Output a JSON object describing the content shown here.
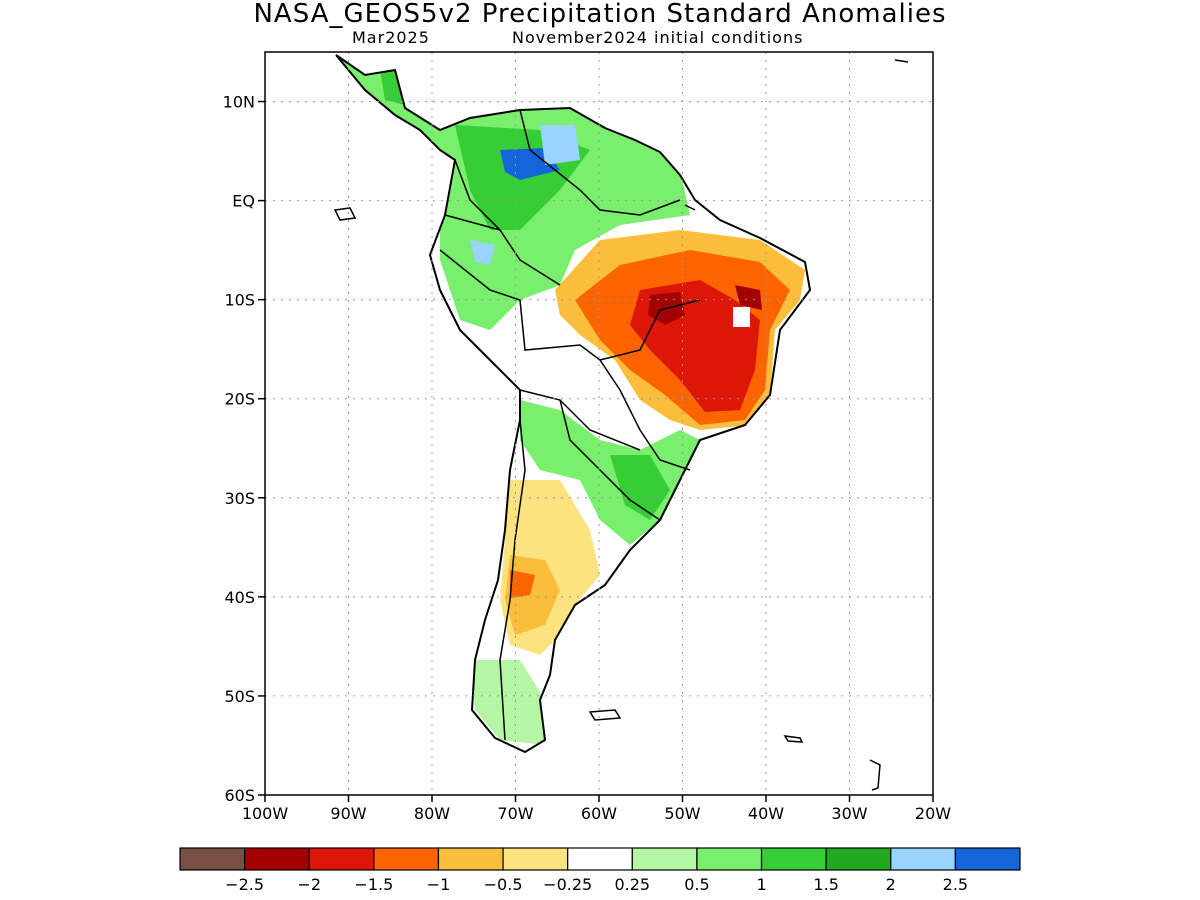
{
  "header": {
    "title": "NASA_GEOS5v2 Precipitation Standard Anomalies",
    "month": "Mar2025",
    "init": "November2024 initial conditions"
  },
  "map": {
    "lon_range": [
      -100,
      -20
    ],
    "lat_range": [
      -60,
      15
    ],
    "lon_ticks": [
      {
        "value": -100,
        "label": "100W"
      },
      {
        "value": -90,
        "label": "90W"
      },
      {
        "value": -80,
        "label": "80W"
      },
      {
        "value": -70,
        "label": "70W"
      },
      {
        "value": -60,
        "label": "60W"
      },
      {
        "value": -50,
        "label": "50W"
      },
      {
        "value": -40,
        "label": "40W"
      },
      {
        "value": -30,
        "label": "30W"
      },
      {
        "value": -20,
        "label": "20W"
      }
    ],
    "lat_ticks": [
      {
        "value": 10,
        "label": "10N"
      },
      {
        "value": 0,
        "label": "EQ"
      },
      {
        "value": -10,
        "label": "10S"
      },
      {
        "value": -20,
        "label": "20S"
      },
      {
        "value": -30,
        "label": "30S"
      },
      {
        "value": -40,
        "label": "40S"
      },
      {
        "value": -50,
        "label": "50S"
      },
      {
        "value": -60,
        "label": "60S"
      }
    ],
    "grid": true,
    "colors": {
      "land_border": "#000000",
      "grid": "#9a9a9a"
    }
  },
  "colorbar": {
    "colors": [
      "#7a4f43",
      "#a30000",
      "#dd1708",
      "#fc6400",
      "#fbbe3c",
      "#fde280",
      "#ffffff",
      "#b4f6a3",
      "#7aee6d",
      "#37cd37",
      "#20a91f",
      "#99d4ff",
      "#1465d8"
    ],
    "labels": [
      "−2.5",
      "−2",
      "−1.5",
      "−1",
      "−0.5",
      "−0.25",
      "0.25",
      "0.5",
      "1",
      "1.5",
      "2",
      "2.5"
    ]
  }
}
